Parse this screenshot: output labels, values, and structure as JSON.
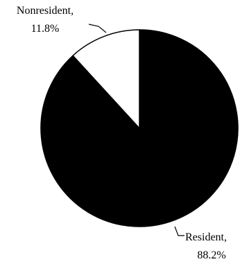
{
  "chart_data": {
    "type": "pie",
    "start": "12 o'clock",
    "direction": "clockwise",
    "slices": [
      {
        "label": "Resident,",
        "pct_label": "88.2%",
        "value": 88.2,
        "color": "#000000"
      },
      {
        "label": "Nonresident,",
        "pct_label": "11.8%",
        "value": 11.8,
        "color": "#ffffff"
      }
    ],
    "border_color": "#000000"
  }
}
